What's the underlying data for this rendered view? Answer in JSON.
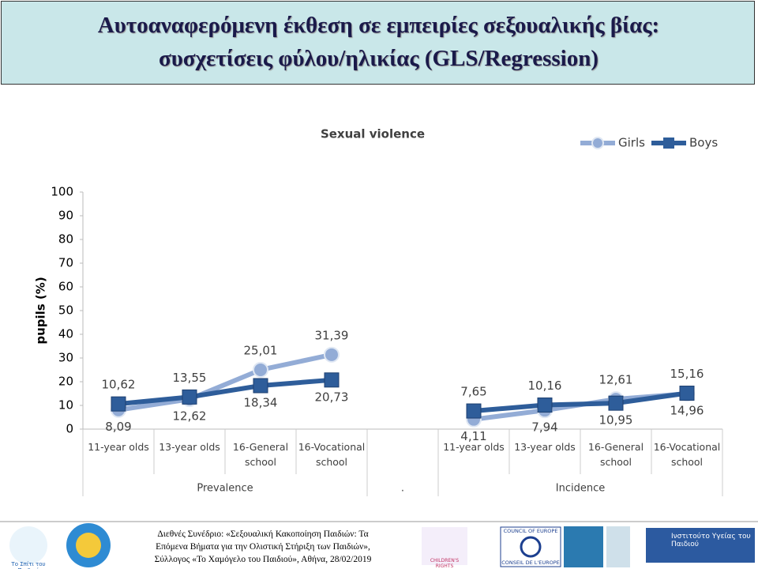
{
  "header": {
    "title_line1": "Αυτοαναφερόμενη έκθεση σε εμπειρίες σεξουαλικής βίας:",
    "title_line2": "συσχετίσεις φύλου/ηλικίας (GLS/Regression)"
  },
  "chart_data": {
    "type": "line",
    "title": "Sexual violence",
    "y_label": "pupils (%)",
    "categories": [
      "11-year olds",
      "13-year olds",
      "16-General school",
      "16-Vocational school",
      null,
      "11-year olds",
      "13-year olds",
      "16-General school",
      "16-Vocational school"
    ],
    "groups": [
      "Prevalence",
      ".",
      "Incidence"
    ],
    "series": [
      {
        "name": "Girls",
        "color": "#93acd6",
        "values": [
          8.09,
          12.62,
          25.01,
          31.39,
          null,
          4.11,
          7.94,
          12.61,
          14.96
        ],
        "value_labels": [
          "8,09",
          "12,62",
          "25,01",
          "31,39",
          null,
          "4,11",
          "7,94",
          "12,61",
          "14,96"
        ]
      },
      {
        "name": "Boys",
        "color": "#2e5d9a",
        "values": [
          10.62,
          13.55,
          18.34,
          20.73,
          null,
          7.65,
          10.16,
          10.95,
          15.16
        ],
        "value_labels": [
          "10,62",
          "13,55",
          "18,34",
          "20,73",
          null,
          "7,65",
          "10,16",
          "10,95",
          "15,16"
        ]
      }
    ],
    "ylim": [
      0,
      100
    ],
    "yticks": [
      0,
      10,
      20,
      30,
      40,
      50,
      60,
      70,
      80,
      90,
      100
    ],
    "grid": false,
    "legend": "top-right"
  },
  "footer": {
    "line1": "Διεθνές Συνέδριο: «Σεξουαλική Κακοποίηση Παιδιών: Τα",
    "line2": "Επόμενα Βήματα για την Ολιστική Στήριξη των Παιδιών»,",
    "line3": "Σύλλογος «Το Χαμόγελο του Παιδιού», Αθήνα, 28/02/2019",
    "logo1": "Το Σπίτι του Παιδιού",
    "logo2": "CHILDREN'S RIGHTS",
    "logo3": "COUNCIL OF EUROPE",
    "logo4": "CONSEIL DE L'EUROPE",
    "logo5": "Ινστιτούτο Υγείας του Παιδιού"
  }
}
